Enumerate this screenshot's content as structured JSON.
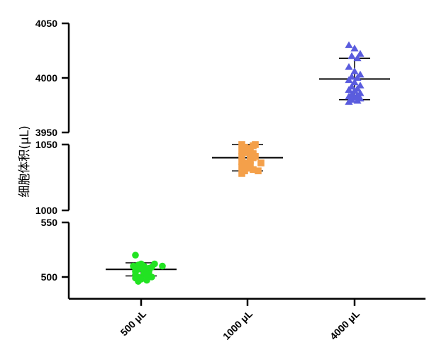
{
  "chart_data": {
    "type": "scatter",
    "title": "",
    "ylabel": "细胞体积(μL)",
    "xlabel": "",
    "categories": [
      "500 μL",
      "1000 μL",
      "4000 μL"
    ],
    "axis_segments": [
      {
        "ylim": [
          480,
          550
        ],
        "ticks": [
          500,
          550
        ]
      },
      {
        "ylim": [
          1000,
          1050
        ],
        "ticks": [
          1000,
          1050
        ]
      },
      {
        "ylim": [
          3950,
          4050
        ],
        "ticks": [
          3950,
          4000,
          4050
        ]
      }
    ],
    "grid": false,
    "legend": "none",
    "series": [
      {
        "category": "500 μL",
        "color": "#22e322",
        "marker": "circle",
        "mean": 507,
        "sd": 6,
        "values": [
          520,
          512,
          512,
          511,
          510,
          510,
          510,
          510,
          509,
          509,
          508,
          508,
          508,
          507,
          506,
          505,
          505,
          504,
          504,
          503,
          502,
          502,
          501,
          500,
          500,
          499,
          498,
          497,
          496
        ]
      },
      {
        "category": "1000 μL",
        "color": "#f4a04a",
        "marker": "square",
        "mean": 1040,
        "sd": 10,
        "values": [
          1050,
          1050,
          1049,
          1048,
          1047,
          1045,
          1044,
          1043,
          1043,
          1042,
          1041,
          1041,
          1040,
          1040,
          1038,
          1037,
          1036,
          1036,
          1035,
          1034,
          1033,
          1032,
          1031,
          1030,
          1030,
          1028
        ]
      },
      {
        "category": "4000 μL",
        "color": "#5a5cde",
        "marker": "triangle",
        "mean": 3999,
        "sd": 19,
        "values": [
          4030,
          4027,
          4022,
          4020,
          4018,
          4010,
          4006,
          4003,
          4001,
          4000,
          3998,
          3996,
          3993,
          3992,
          3990,
          3989,
          3988,
          3986,
          3985,
          3984,
          3983,
          3982,
          3981,
          3980,
          3979,
          3978
        ]
      }
    ]
  }
}
